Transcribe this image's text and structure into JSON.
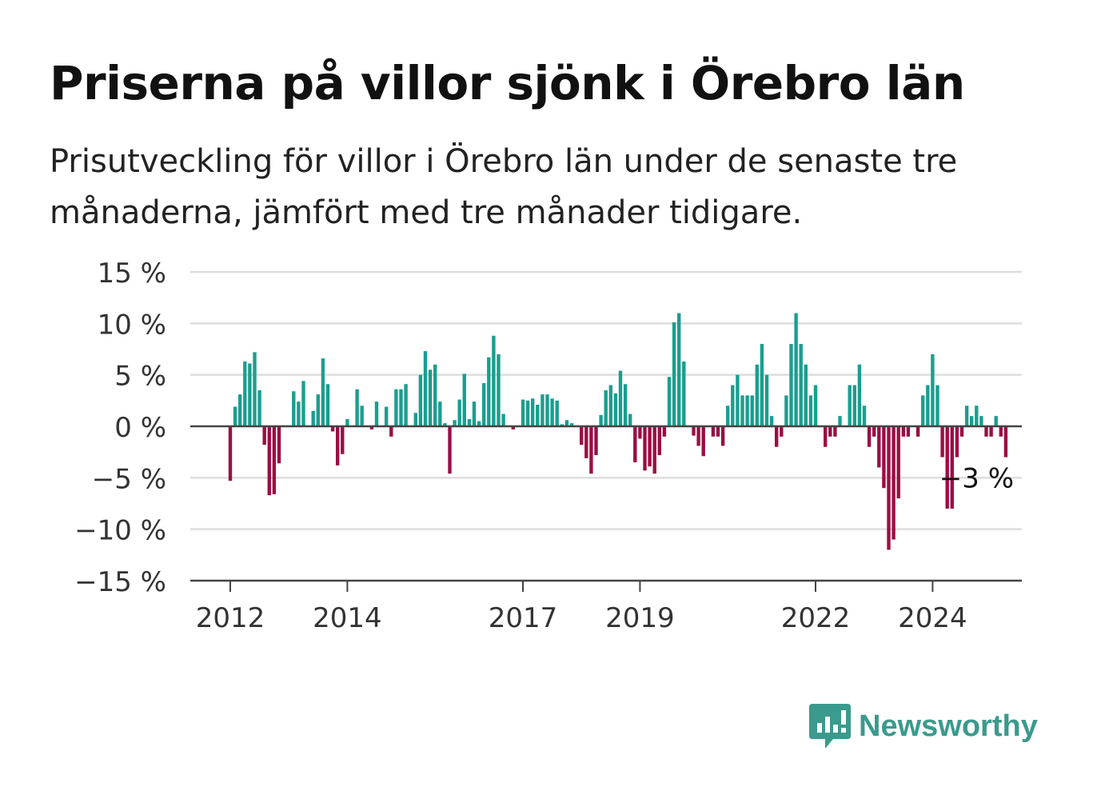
{
  "title": "Priserna på villor sjönk i Örebro län",
  "subtitle": "Prisutveckling för villor i Örebro län under de senaste tre månaderna, jämfört med tre månader tidigare.",
  "logo_text": "Newsworthy",
  "colors": {
    "positive": "#1a9e8f",
    "negative": "#9b0e44",
    "grid": "#dddddd",
    "axis": "#444444",
    "logo": "#3a9a8d"
  },
  "chart_data": {
    "type": "bar",
    "y_ticks": [
      "15 %",
      "10 %",
      "5 %",
      "0 %",
      "−5 %",
      "−10 %",
      "−15 %"
    ],
    "ylim": [
      -15,
      15
    ],
    "x_ticks": [
      "2012",
      "2014",
      "2017",
      "2019",
      "2022",
      "2024"
    ],
    "annotation": "−3 %",
    "series": [
      {
        "start": "2012-01",
        "frequency": "monthly",
        "values": [
          -5.3,
          1.9,
          3.1,
          6.3,
          6.1,
          7.2,
          3.5,
          -1.8,
          -6.7,
          -6.6,
          -3.6,
          0,
          0,
          3.4,
          2.4,
          4.4,
          0,
          1.5,
          3.1,
          6.6,
          4.1,
          -0.5,
          -3.8,
          -2.7,
          0.7,
          0,
          3.6,
          2.0,
          0,
          -0.3,
          2.4,
          0,
          1.9,
          -1.0,
          3.6,
          3.6,
          4.1,
          0,
          1.3,
          5.0,
          7.3,
          5.5,
          6.0,
          2.4,
          0.3,
          -4.6,
          0.6,
          2.6,
          5.1,
          0.7,
          2.4,
          0.5,
          4.2,
          6.7,
          8.8,
          7.0,
          1.2,
          0,
          -0.3,
          0,
          2.6,
          2.5,
          2.7,
          2.1,
          3.1,
          3.1,
          2.7,
          2.5,
          0.2,
          0.6,
          0.3,
          0,
          -1.8,
          -3.1,
          -4.6,
          -2.8,
          1.1,
          3.5,
          4.0,
          3.2,
          5.4,
          4.1,
          1.2,
          -3.5,
          -1.2,
          -4.3,
          -3.9,
          -4.6,
          -2.8,
          -1.0,
          4.8,
          10.1,
          11.0,
          6.3,
          0,
          -0.9,
          -1.9,
          -2.9,
          0,
          -1.0,
          -1.0,
          -1.9,
          2.0,
          4.0,
          5.0,
          3.0,
          3.0,
          3.0,
          6.0,
          8.0,
          5.0,
          1.0,
          -2.0,
          -1.0,
          3.0,
          8.0,
          11.0,
          8.0,
          6.0,
          3.0,
          4.0,
          0,
          -2.0,
          -1.0,
          -1.0,
          1.0,
          0,
          4.0,
          4.0,
          6.0,
          2.0,
          -2.0,
          -1.0,
          -4.0,
          -6.0,
          -12.0,
          -11.0,
          -7.0,
          -1.0,
          -1.0,
          0,
          -1.0,
          3.0,
          4.0,
          7.0,
          4.0,
          -3.0,
          -8.0,
          -8.0,
          -3.0,
          -1.0,
          2.0,
          1.0,
          2.0,
          1.0,
          -1.0,
          -1.0,
          1.0,
          -1.0,
          -3.0
        ]
      }
    ]
  }
}
